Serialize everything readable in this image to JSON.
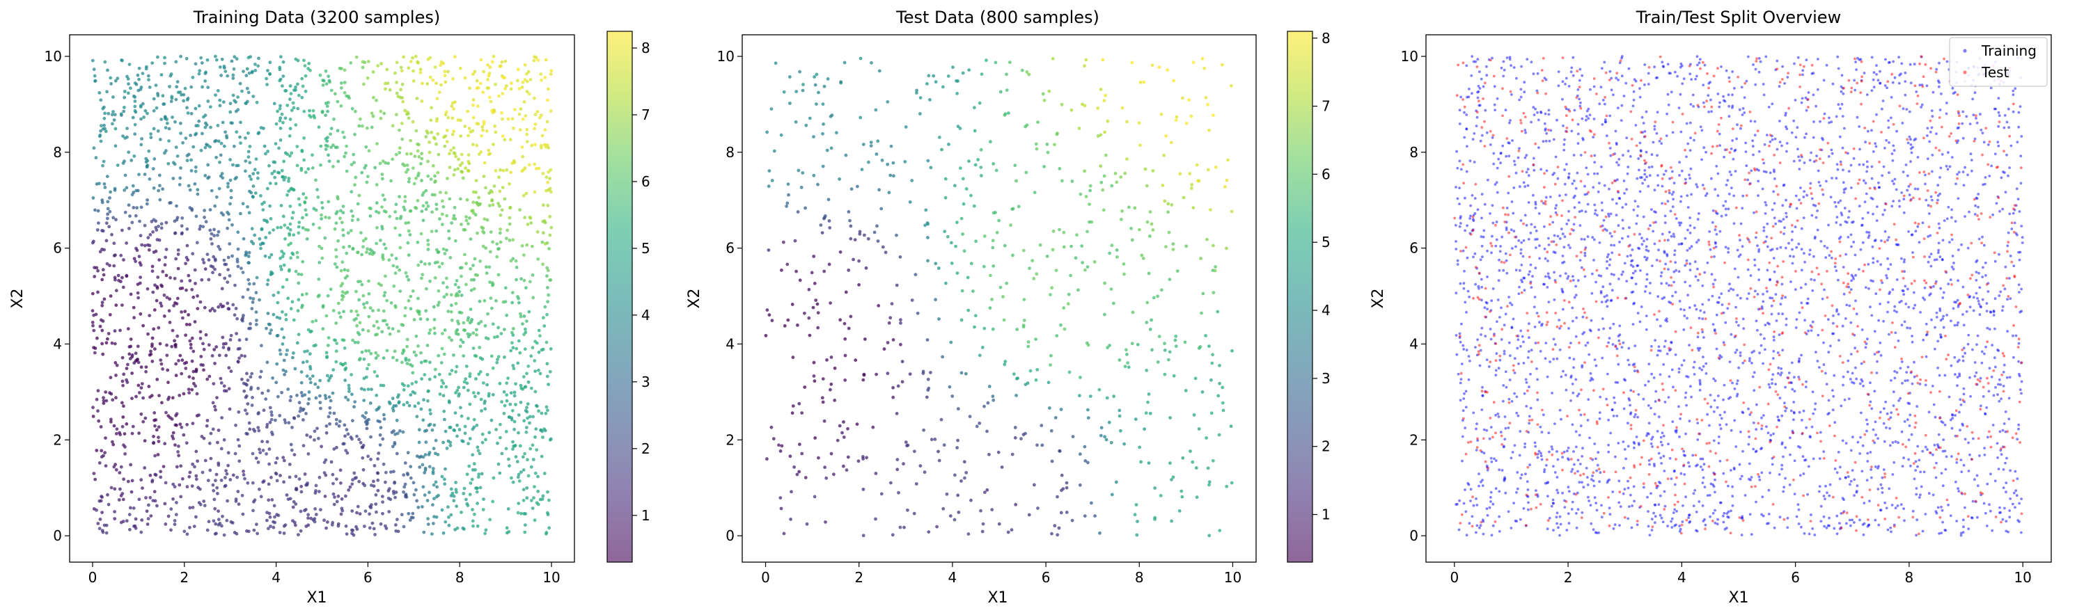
{
  "figure": {
    "background": "#ffffff"
  },
  "chart_data": [
    {
      "type": "scatter",
      "title": "Training Data (3200 samples)",
      "xlabel": "X1",
      "ylabel": "X2",
      "xlim": [
        -0.5,
        10.5
      ],
      "ylim": [
        -0.55,
        10.45
      ],
      "xticks": [
        0,
        2,
        4,
        6,
        8,
        10
      ],
      "yticks": [
        0,
        2,
        4,
        6,
        8,
        10
      ],
      "grid": false,
      "n_points": 3200,
      "point_distribution": "uniform on [0,10] x [0,10]",
      "color_encoding": "target value, viridis colormap, alpha 0.6",
      "colorbar": {
        "cmap": "viridis",
        "range": [
          0.3,
          8.25
        ],
        "ticks": [
          1,
          2,
          3,
          4,
          5,
          6,
          7,
          8
        ]
      },
      "value_landmarks": [
        {
          "x": 1.0,
          "y": 4.0,
          "value": 0.5
        },
        {
          "x": 6.3,
          "y": 5.3,
          "value": 6.0
        },
        {
          "x": 9.6,
          "y": 9.7,
          "value": 8.0
        },
        {
          "x": 9.5,
          "y": 0.5,
          "value": 5.0
        },
        {
          "x": 0.5,
          "y": 9.5,
          "value": 4.0
        },
        {
          "x": 5.0,
          "y": 0.5,
          "value": 1.5
        }
      ]
    },
    {
      "type": "scatter",
      "title": "Test Data (800 samples)",
      "xlabel": "X1",
      "ylabel": "X2",
      "xlim": [
        -0.5,
        10.5
      ],
      "ylim": [
        -0.55,
        10.45
      ],
      "xticks": [
        0,
        2,
        4,
        6,
        8,
        10
      ],
      "yticks": [
        0,
        2,
        4,
        6,
        8,
        10
      ],
      "grid": false,
      "n_points": 800,
      "point_distribution": "uniform on [0,10] x [0,10]",
      "color_encoding": "target value, viridis colormap, alpha 0.6",
      "colorbar": {
        "cmap": "viridis",
        "range": [
          0.3,
          8.1
        ],
        "ticks": [
          1,
          2,
          3,
          4,
          5,
          6,
          7,
          8
        ]
      }
    },
    {
      "type": "scatter",
      "title": "Train/Test Split Overview",
      "xlabel": "X1",
      "ylabel": "X2",
      "xlim": [
        -0.5,
        10.5
      ],
      "ylim": [
        -0.55,
        10.45
      ],
      "xticks": [
        0,
        2,
        4,
        6,
        8,
        10
      ],
      "yticks": [
        0,
        2,
        4,
        6,
        8,
        10
      ],
      "grid": false,
      "legend": "upper right",
      "series": [
        {
          "name": "Training",
          "color": "#0000ff",
          "alpha": 0.5,
          "n_points": 3200
        },
        {
          "name": "Test",
          "color": "#ff0000",
          "alpha": 0.5,
          "n_points": 800
        }
      ]
    }
  ]
}
